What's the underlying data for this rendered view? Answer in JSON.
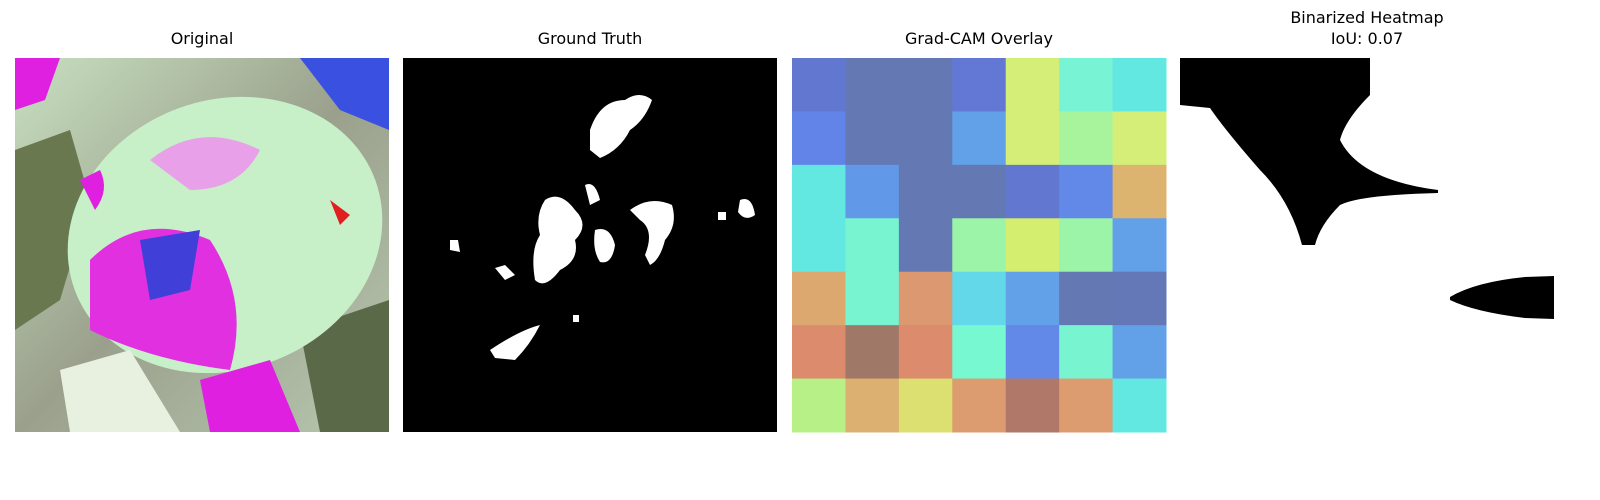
{
  "panels": [
    {
      "title": "Original"
    },
    {
      "title": "Ground Truth"
    },
    {
      "title": "Grad-CAM Overlay",
      "cells": [
        [
          "#6278d0",
          "#6478b4",
          "#6478b4",
          "#6278d4",
          "#d4ee78",
          "#78f4d4",
          "#62e8e0"
        ],
        [
          "#6284e8",
          "#6478b4",
          "#6478b4",
          "#62a0e8",
          "#d4ee78",
          "#a8f49c",
          "#d4ee78"
        ],
        [
          "#62e8e0",
          "#6298e8",
          "#6478b4",
          "#6478b4",
          "#6278d0",
          "#6288e8",
          "#dcb470"
        ],
        [
          "#62e8e0",
          "#78f4d0",
          "#6478b4",
          "#9cf4a8",
          "#d4ee70",
          "#9cf4a8",
          "#62a0e8"
        ],
        [
          "#dca870",
          "#78f4d0",
          "#dc9870",
          "#62d8e8",
          "#62a0e8",
          "#6478b4",
          "#6478b8"
        ],
        [
          "#dc8c6c",
          "#a07868",
          "#dc8c6c",
          "#78f8d0",
          "#6288e8",
          "#78f4d0",
          "#62a0e8"
        ],
        [
          "#b8f088",
          "#dcb070",
          "#dce070",
          "#dc9c70",
          "#b07868",
          "#dc9c70",
          "#62e8e0"
        ]
      ]
    },
    {
      "title": "Binarized Heatmap",
      "subtitle": "IoU: 0.07"
    }
  ]
}
